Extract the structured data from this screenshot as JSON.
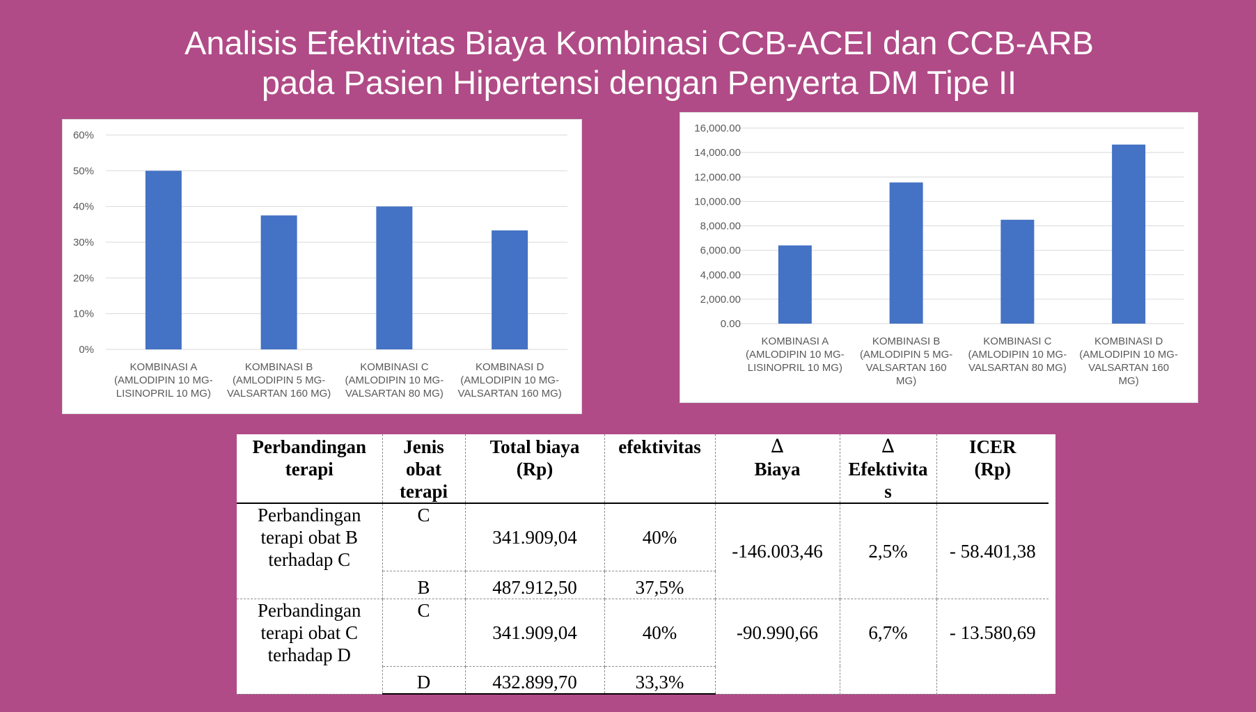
{
  "title": {
    "line1": "Analisis Efektivitas Biaya Kombinasi CCB-ACEI dan CCB-ARB",
    "line2": "pada Pasien Hipertensi dengan Penyerta DM Tipe II"
  },
  "colors": {
    "background": "#b04b87",
    "bar": "#4472c4",
    "grid": "#d9d9d9"
  },
  "chart_data": [
    {
      "type": "bar",
      "categories": [
        [
          "KOMBINASI A",
          "(AMLODIPIN 10 MG-",
          "LISINOPRIL 10 MG)"
        ],
        [
          "KOMBINASI B",
          "(AMLODIPIN 5 MG-",
          "VALSARTAN 160 MG)"
        ],
        [
          "KOMBINASI C",
          "(AMLODIPIN 10 MG-",
          "VALSARTAN 80 MG)"
        ],
        [
          "KOMBINASI D",
          "(AMLODIPIN 10 MG-",
          "VALSARTAN 160 MG)"
        ]
      ],
      "values": [
        50,
        37.5,
        40,
        33.3
      ],
      "ylim": [
        0,
        60
      ],
      "yticks": [
        "0%",
        "10%",
        "20%",
        "30%",
        "40%",
        "50%",
        "60%"
      ],
      "grid": true,
      "title": "",
      "xlabel": "",
      "ylabel": ""
    },
    {
      "type": "bar",
      "categories": [
        [
          "KOMBINASI A",
          "(AMLODIPIN 10 MG-",
          "LISINOPRIL 10 MG)"
        ],
        [
          "KOMBINASI B",
          "(AMLODIPIN 5 MG-",
          "VALSARTAN 160",
          "MG)"
        ],
        [
          "KOMBINASI C",
          "(AMLODIPIN 10 MG-",
          "VALSARTAN 80 MG)"
        ],
        [
          "KOMBINASI D",
          "(AMLODIPIN 10 MG-",
          "VALSARTAN 160",
          "MG)"
        ]
      ],
      "values": [
        6400,
        11550,
        8500,
        14650
      ],
      "ylim": [
        0,
        16000
      ],
      "yticks": [
        "0.00",
        "2,000.00",
        "4,000.00",
        "6,000.00",
        "8,000.00",
        "10,000.00",
        "12,000.00",
        "14,000.00",
        "16,000.00"
      ],
      "grid": true,
      "title": "",
      "xlabel": "",
      "ylabel": ""
    }
  ],
  "table": {
    "headers": {
      "perbandingan": "Perbandingan terapi",
      "jenis": "Jenis obat terapi",
      "total": "Total biaya (Rp)",
      "efektivitas": "efektivitas",
      "delta_symbol": "∆",
      "delta_biaya": "Biaya",
      "delta_efek": "Efektivitas",
      "icer": "ICER (Rp)"
    },
    "groups": [
      {
        "desc": "Perbandingan terapi obat B terhadap C",
        "rows": [
          {
            "jenis": "C",
            "total": "341.909,04",
            "efektivitas": "40%"
          },
          {
            "jenis": "B",
            "total": "487.912,50",
            "efektivitas": "37,5%"
          }
        ],
        "delta_biaya": "-146.003,46",
        "delta_efektivitas": "2,5%",
        "icer": "- 58.401,38"
      },
      {
        "desc": "Perbandingan terapi obat C terhadap D",
        "rows": [
          {
            "jenis": "C",
            "total": "341.909,04",
            "efektivitas": "40%"
          },
          {
            "jenis": "D",
            "total": "432.899,70",
            "efektivitas": "33,3%"
          }
        ],
        "delta_biaya": "-90.990,66",
        "delta_efektivitas": "6,7%",
        "icer": "- 13.580,69"
      }
    ]
  }
}
